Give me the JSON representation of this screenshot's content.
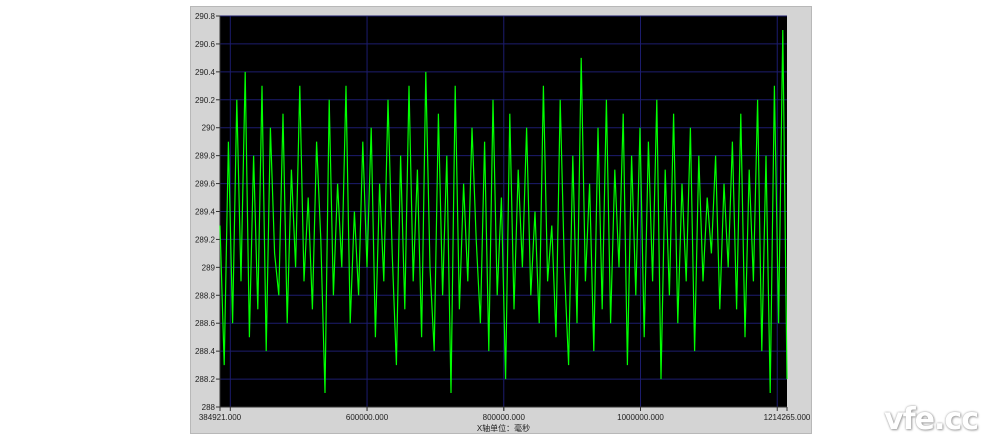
{
  "chart_data": {
    "type": "line",
    "title": "",
    "xlabel": "X轴单位：毫秒",
    "ylabel": "",
    "xlim": [
      384921,
      1214265
    ],
    "ylim": [
      288,
      290.8
    ],
    "x_tick_labels": [
      "384921.000",
      "600000.000",
      "800000.000",
      "1000000.000",
      "1214265.000"
    ],
    "x_tick_values": [
      384921,
      600000,
      800000,
      1000000,
      1214265
    ],
    "x_grid_values": [
      400000,
      600000,
      800000,
      1000000,
      1200000
    ],
    "y_tick_labels": [
      "290.8",
      "290.6",
      "290.4",
      "290.2",
      "290",
      "289.8",
      "289.6",
      "289.4",
      "289.2",
      "289",
      "288.8",
      "288.6",
      "288.4",
      "288.2",
      "288"
    ],
    "y_tick_values": [
      290.8,
      290.6,
      290.4,
      290.2,
      290,
      289.8,
      289.6,
      289.4,
      289.2,
      289,
      288.8,
      288.6,
      288.4,
      288.2,
      288
    ],
    "grid": true,
    "background": "#000000",
    "grid_color": "#1c1c6e",
    "series": [
      {
        "color": "#00ff00",
        "values": [
          289.3,
          288.3,
          289.9,
          288.6,
          290.2,
          288.9,
          290.4,
          288.5,
          289.8,
          288.7,
          290.3,
          288.4,
          290.0,
          289.1,
          288.8,
          290.1,
          288.6,
          289.7,
          289.0,
          290.3,
          288.9,
          289.5,
          288.7,
          289.9,
          289.2,
          288.1,
          290.2,
          288.8,
          289.6,
          289.0,
          290.3,
          288.6,
          289.4,
          288.8,
          289.9,
          289.0,
          290.0,
          288.5,
          289.6,
          288.9,
          290.2,
          289.1,
          288.3,
          289.8,
          288.7,
          290.3,
          288.9,
          289.7,
          288.5,
          290.4,
          289.0,
          288.4,
          290.1,
          288.8,
          289.8,
          288.1,
          290.3,
          288.7,
          289.6,
          288.9,
          290.0,
          289.2,
          288.6,
          289.9,
          288.4,
          290.2,
          288.8,
          289.5,
          288.2,
          290.1,
          288.7,
          289.7,
          289.0,
          290.0,
          288.8,
          289.4,
          288.6,
          290.3,
          288.9,
          289.3,
          288.5,
          290.2,
          289.0,
          288.3,
          289.8,
          288.6,
          290.5,
          288.9,
          289.6,
          288.4,
          290.0,
          288.7,
          290.2,
          288.6,
          289.7,
          289.0,
          290.1,
          288.3,
          289.8,
          288.8,
          290.0,
          288.5,
          289.9,
          288.9,
          290.2,
          288.2,
          289.7,
          288.8,
          290.1,
          288.6,
          289.6,
          288.9,
          290.0,
          288.4,
          289.8,
          288.9,
          289.5,
          289.1,
          289.8,
          288.7,
          289.6,
          289.0,
          289.9,
          288.7,
          290.1,
          288.5,
          289.7,
          288.9,
          290.2,
          288.4,
          289.8,
          288.1,
          290.3,
          288.6,
          290.7,
          288.2
        ]
      }
    ]
  },
  "watermark": "vfe.cc"
}
